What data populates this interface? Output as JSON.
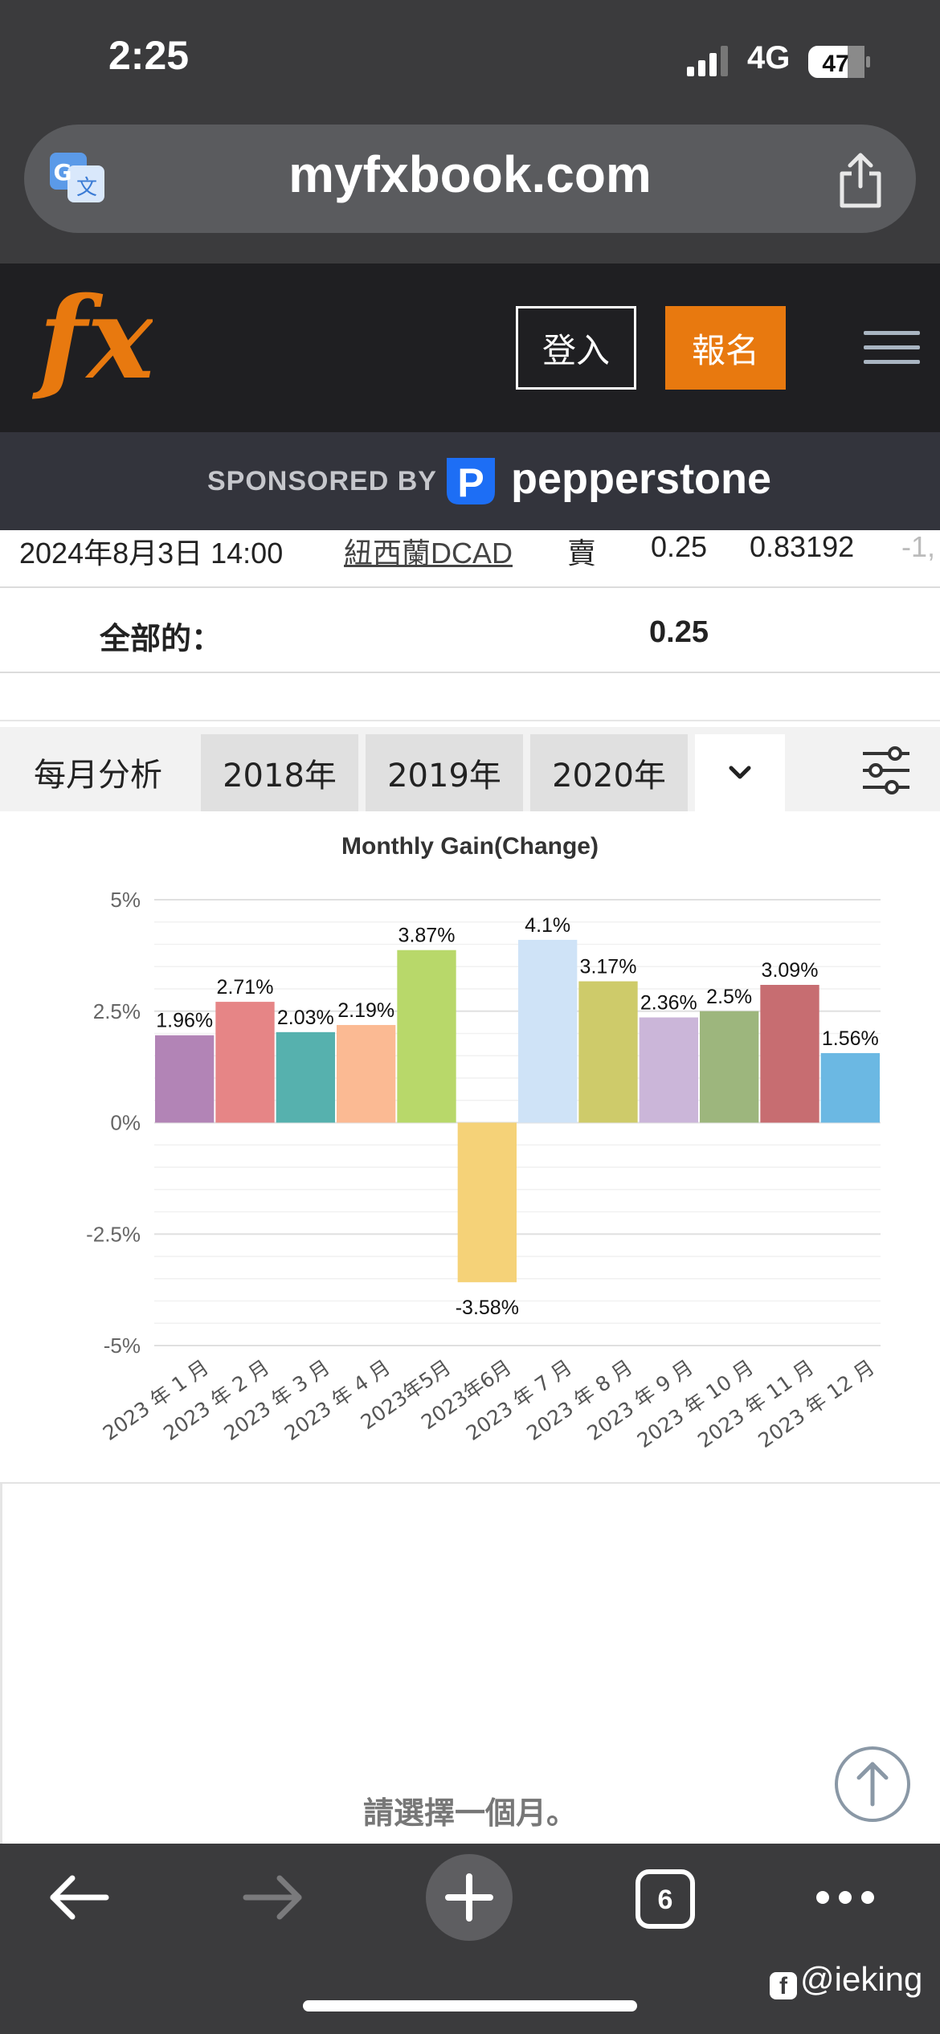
{
  "status_bar": {
    "time": "2:25",
    "network": "4G",
    "battery": "47"
  },
  "browser": {
    "url": "myfxbook.com"
  },
  "site_header": {
    "login_label": "登入",
    "signup_label": "報名",
    "brand_color": "#e8790f"
  },
  "sponsor": {
    "label": "SPONSORED BY",
    "brand": "pepperstone"
  },
  "trade_row": {
    "date": "2024年8月3日 14:00",
    "symbol": "紐西蘭DCAD",
    "action": "賣",
    "lots": "0.25",
    "price": "0.83192",
    "extra": "-1,"
  },
  "total_row": {
    "label": "全部的：",
    "value": "0.25"
  },
  "monthly_tabs": {
    "label": "每月分析",
    "tabs": [
      "2018年",
      "2019年",
      "2020年"
    ]
  },
  "chart_data": {
    "type": "bar",
    "title": "Monthly Gain(Change)",
    "categories": [
      "2023 年 1 月",
      "2023 年 2 月",
      "2023 年 3 月",
      "2023 年 4 月",
      "2023年5月",
      "2023年6月",
      "2023 年 7 月",
      "2023 年 8 月",
      "2023 年 9 月",
      "2023 年 10 月",
      "2023 年 11 月",
      "2023 年 12 月"
    ],
    "values": [
      1.96,
      2.71,
      2.03,
      2.19,
      3.87,
      -3.58,
      4.1,
      3.17,
      2.36,
      2.5,
      3.09,
      1.56
    ],
    "value_labels": [
      "1.96%",
      "2.71%",
      "2.03%",
      "2.19%",
      "3.87%",
      "-3.58%",
      "4.1%",
      "3.17%",
      "2.36%",
      "2.5%",
      "3.09%",
      "1.56%"
    ],
    "colors": [
      "#b284b6",
      "#e68586",
      "#56b1ae",
      "#fbba93",
      "#b8d86a",
      "#f5d278",
      "#cfe3f7",
      "#cecb6a",
      "#cbb6d9",
      "#9db67d",
      "#c76d71",
      "#6bb8e3"
    ],
    "y_ticks": [
      "5%",
      "2.5%",
      "0%",
      "-2.5%",
      "-5%"
    ],
    "ylim": [
      -5,
      5
    ],
    "grid": true
  },
  "lower_panel": {
    "prompt": "請選擇一個月。"
  },
  "bottom_bar": {
    "tab_count": "6"
  },
  "watermark": "@ieking"
}
